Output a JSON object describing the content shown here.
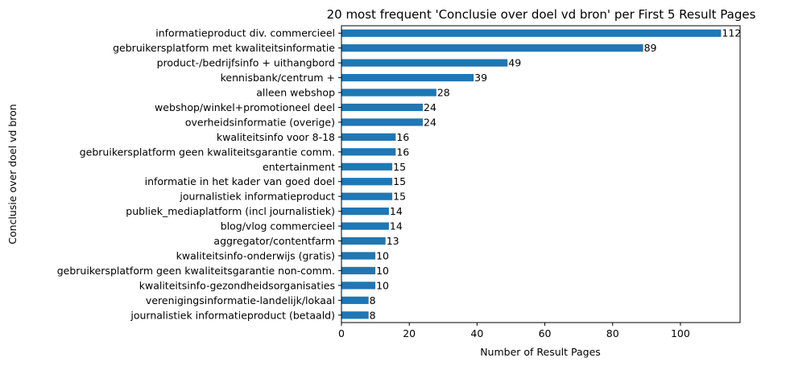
{
  "chart_data": {
    "type": "bar",
    "orientation": "horizontal",
    "title": "20 most frequent 'Conclusie over doel vd bron' per First 5 Result Pages",
    "xlabel": "Number of Result Pages",
    "ylabel": "Conclusie over doel vd bron",
    "xlim": [
      0,
      117.6
    ],
    "xticks": [
      0,
      20,
      40,
      60,
      80,
      100
    ],
    "grid": false,
    "legend": "none",
    "bar_color": "#1f77b4",
    "categories": [
      "informatieproduct div. commercieel",
      "gebruikersplatform met kwaliteitsinformatie",
      "product-/bedrijfsinfo + uithangbord",
      "kennisbank/centrum +",
      "alleen webshop",
      "webshop/winkel+promotioneel deel",
      "overheidsinformatie (overige)",
      "kwaliteitsinfo voor 8-18",
      "gebruikersplatform geen kwaliteitsgarantie comm.",
      "entertainment",
      "informatie in het kader van goed doel",
      "journalistiek informatieproduct",
      "publiek_mediaplatform (incl journalistiek)",
      "blog/vlog commercieel",
      "aggregator/contentfarm",
      "kwaliteitsinfo-onderwijs (gratis)",
      "gebruikersplatform geen kwaliteitsgarantie non-comm.",
      "kwaliteitsinfo-gezondheidsorganisaties",
      "verenigingsinformatie-landelijk/lokaal",
      "journalistiek informatieproduct (betaald)"
    ],
    "values": [
      112,
      89,
      49,
      39,
      28,
      24,
      24,
      16,
      16,
      15,
      15,
      15,
      14,
      14,
      13,
      10,
      10,
      10,
      8,
      8
    ]
  }
}
